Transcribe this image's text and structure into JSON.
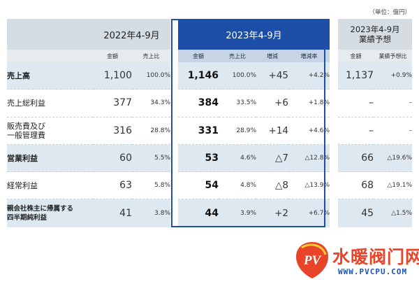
{
  "unit_note": "（単位：億円）",
  "header": {
    "period_2022": "2022年4-9月",
    "period_2023": "2023年4-9月",
    "forecast_line1": "2023年4-9月",
    "forecast_line2": "業績予想",
    "col_amount": "金額",
    "col_ratio": "売上比",
    "col_change": "増減",
    "col_change_rate": "増減率",
    "col_vs_forecast": "業績予想比"
  },
  "rows": [
    {
      "label": "売上高",
      "a2022": "1,100",
      "r2022": "100.0%",
      "a2023": "1,146",
      "r2023": "100.0%",
      "chg": "+45",
      "chg_rate": "+4.2%",
      "fc": "1,137",
      "fc_ratio": "+0.9%"
    },
    {
      "label": "売上総利益",
      "a2022": "377",
      "r2022": "34.3%",
      "a2023": "384",
      "r2023": "33.5%",
      "chg": "+6",
      "chg_rate": "+1.8%",
      "fc": "–",
      "fc_ratio": "–"
    },
    {
      "label_line1": "販売費及び",
      "label_line2": "一般管理費",
      "a2022": "316",
      "r2022": "28.8%",
      "a2023": "331",
      "r2023": "28.9%",
      "chg": "+14",
      "chg_rate": "+4.6%",
      "fc": "–",
      "fc_ratio": "–"
    },
    {
      "label": "営業利益",
      "a2022": "60",
      "r2022": "5.5%",
      "a2023": "53",
      "r2023": "4.6%",
      "chg": "△7",
      "chg_rate": "△12.8%",
      "fc": "66",
      "fc_ratio": "△19.6%"
    },
    {
      "label": "経常利益",
      "a2022": "63",
      "r2022": "5.8%",
      "a2023": "54",
      "r2023": "4.8%",
      "chg": "△8",
      "chg_rate": "△13.9%",
      "fc": "68",
      "fc_ratio": "△19.1%"
    },
    {
      "label_line1": "親会社株主に帰属する",
      "label_line2": "四半期純利益",
      "a2022": "41",
      "r2022": "3.8%",
      "a2023": "44",
      "r2023": "3.9%",
      "chg": "+2",
      "chg_rate": "+6.7%",
      "fc": "45",
      "fc_ratio": "△1.5%"
    }
  ],
  "watermark": {
    "brand": "水暖阀门网",
    "url": "WWW.PVCPU.COM",
    "logo_letters": "PV",
    "colors": {
      "red": "#e8442a",
      "blue": "#1d55b8"
    }
  },
  "colors": {
    "accent_blue": "#1d4fa8",
    "header_gray": "#d6dde2",
    "row_shade": "#dde8f0"
  }
}
